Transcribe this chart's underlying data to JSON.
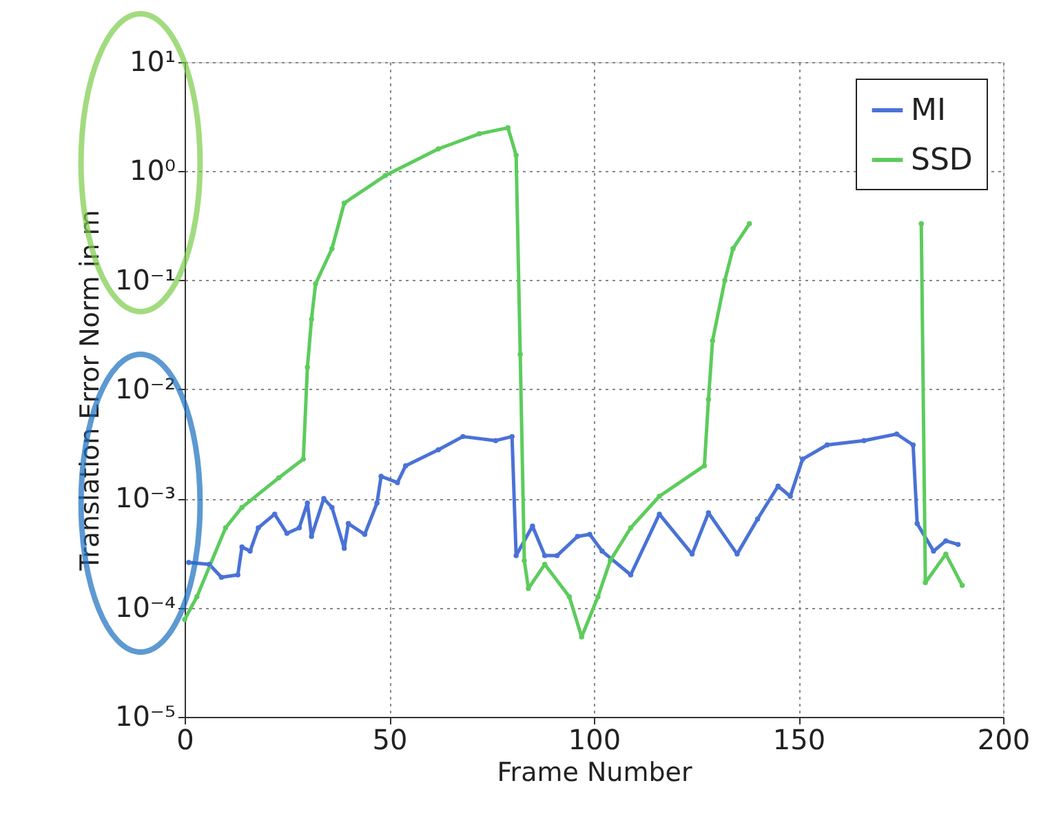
{
  "chart_data": {
    "type": "line",
    "xlabel": "Frame Number",
    "ylabel": "Translation Error Norm in m",
    "xlim": [
      0,
      200
    ],
    "xticks": [
      0,
      50,
      100,
      150,
      200
    ],
    "ylim": [
      1e-05,
      10
    ],
    "log": "y",
    "yticks": [
      {
        "value": 1e-05,
        "label": "10⁻⁵"
      },
      {
        "value": 0.0001,
        "label": "10⁻⁴"
      },
      {
        "value": 0.001,
        "label": "10⁻³"
      },
      {
        "value": 0.01,
        "label": "10⁻²"
      },
      {
        "value": 0.1,
        "label": "10⁻¹"
      },
      {
        "value": 1,
        "label": "10⁰"
      },
      {
        "value": 10,
        "label": "10¹"
      }
    ],
    "grid": true,
    "legend": "top right",
    "marker": "circle",
    "line_style": "solid",
    "series": [
      {
        "name": "MI",
        "color": "#4a72d6",
        "x": [
          1,
          6,
          9,
          13,
          14,
          16,
          18,
          22,
          25,
          28,
          30,
          31,
          34,
          36,
          39,
          40,
          44,
          47,
          48,
          52,
          54,
          62,
          68,
          76,
          80,
          81,
          85,
          88,
          91,
          96,
          99,
          102,
          109,
          116,
          124,
          128,
          135,
          140,
          145,
          148,
          151,
          157,
          166,
          174,
          178,
          179,
          183,
          186,
          189
        ],
        "values": [
          0.00026,
          0.00025,
          0.00019,
          0.0002,
          0.00036,
          0.00033,
          0.00054,
          0.00072,
          0.00048,
          0.00054,
          0.00091,
          0.00045,
          0.001,
          0.00083,
          0.00035,
          0.00059,
          0.00047,
          0.00091,
          0.0016,
          0.0014,
          0.002,
          0.0028,
          0.0037,
          0.0034,
          0.0037,
          0.0003,
          0.00056,
          0.0003,
          0.0003,
          0.00045,
          0.00047,
          0.00033,
          0.0002,
          0.00072,
          0.00031,
          0.00074,
          0.00031,
          0.00065,
          0.0013,
          0.00105,
          0.0023,
          0.0031,
          0.0034,
          0.0039,
          0.0031,
          0.00059,
          0.00033,
          0.00041,
          0.00038
        ]
      },
      {
        "name": "SSD",
        "color": "#5ccc5c",
        "x": [
          0,
          3,
          10,
          14,
          23,
          29,
          30,
          31,
          32,
          36,
          39,
          49,
          62,
          72,
          79,
          81,
          82,
          83,
          84,
          88,
          94,
          97,
          101,
          104,
          109,
          116,
          127,
          128,
          129,
          132,
          134,
          138,
          160,
          180,
          181,
          186,
          190
        ],
        "values": [
          7.8e-05,
          0.000126,
          0.00054,
          0.00083,
          0.00155,
          0.0023,
          0.016,
          0.044,
          0.093,
          0.195,
          0.51,
          0.91,
          1.6,
          2.2,
          2.5,
          1.4,
          0.021,
          0.00027,
          0.00015,
          0.00025,
          0.000126,
          5.4e-05,
          0.000126,
          0.00027,
          0.00054,
          0.00105,
          0.002,
          0.0081,
          0.028,
          0.1,
          0.195,
          0.33,
          null,
          0.33,
          0.00017,
          0.00031,
          0.00016
        ]
      }
    ]
  }
}
